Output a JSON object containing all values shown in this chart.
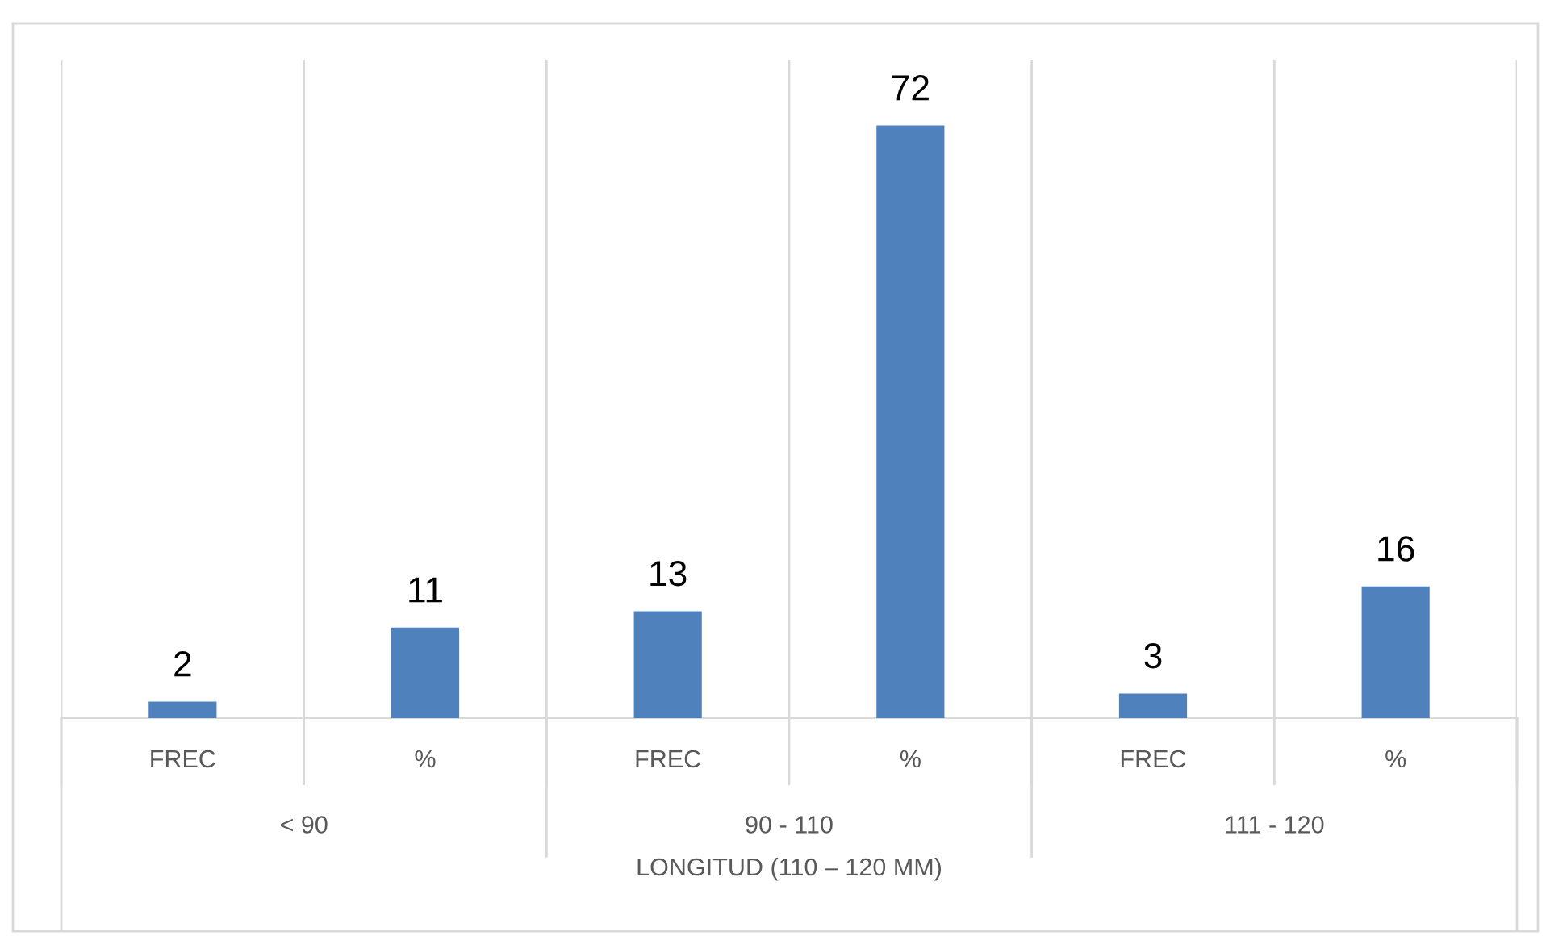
{
  "chart_data": {
    "type": "bar",
    "categories": [
      "FREC",
      "%",
      "FREC",
      "%",
      "FREC",
      "%"
    ],
    "values": [
      2,
      11,
      13,
      72,
      3,
      16
    ],
    "color": "#4f81bd",
    "ylim": [
      0,
      80
    ],
    "data_labels": true,
    "grid": "x",
    "tick_labels": "x",
    "xlabel": "LONGITUD (110 – 120 MM)",
    "annotations": [
      "< 90",
      "90 - 110",
      "111 - 120"
    ]
  }
}
